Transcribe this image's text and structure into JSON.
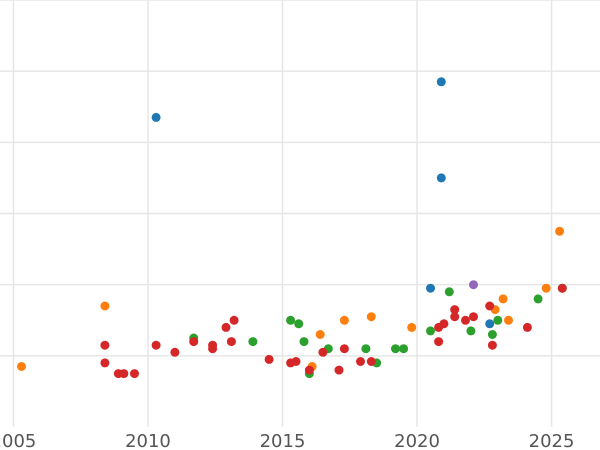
{
  "chart_data": {
    "type": "scatter",
    "title": "",
    "xlabel": "",
    "ylabel": "",
    "grid": true,
    "legend": "none",
    "xlim": [
      2004.5,
      2026.8
    ],
    "ylim": [
      0,
      6
    ],
    "x_ticks": [
      2005,
      2010,
      2015,
      2020,
      2025
    ],
    "x_tick_labels": [
      "2005",
      "2010",
      "2015",
      "2020",
      "2025"
    ],
    "y_gridlines": [
      1,
      2,
      3,
      4,
      5,
      6
    ],
    "series": [
      {
        "color": "#1f77b4",
        "points": [
          [
            2010.3,
            4.35
          ],
          [
            2020.9,
            4.85
          ],
          [
            2020.9,
            3.5
          ],
          [
            2020.5,
            1.95
          ],
          [
            2022.7,
            1.45
          ]
        ]
      },
      {
        "color": "#ff7f0e",
        "points": [
          [
            2005.3,
            0.85
          ],
          [
            2008.4,
            1.7
          ],
          [
            2016.1,
            0.85
          ],
          [
            2016.4,
            1.3
          ],
          [
            2017.3,
            1.5
          ],
          [
            2018.3,
            1.55
          ],
          [
            2019.8,
            1.4
          ],
          [
            2022.9,
            1.65
          ],
          [
            2023.2,
            1.8
          ],
          [
            2023.4,
            1.5
          ],
          [
            2024.8,
            1.95
          ],
          [
            2025.3,
            2.75
          ]
        ]
      },
      {
        "color": "#2ca02c",
        "points": [
          [
            2011.7,
            1.25
          ],
          [
            2013.9,
            1.2
          ],
          [
            2015.3,
            1.5
          ],
          [
            2015.6,
            1.45
          ],
          [
            2015.8,
            1.2
          ],
          [
            2016.0,
            0.75
          ],
          [
            2016.7,
            1.1
          ],
          [
            2018.1,
            1.1
          ],
          [
            2018.5,
            0.9
          ],
          [
            2019.2,
            1.1
          ],
          [
            2019.5,
            1.1
          ],
          [
            2020.5,
            1.35
          ],
          [
            2021.2,
            1.9
          ],
          [
            2022.0,
            1.35
          ],
          [
            2022.8,
            1.3
          ],
          [
            2023.0,
            1.5
          ],
          [
            2024.5,
            1.8
          ],
          [
            2025.4,
            1.95
          ]
        ]
      },
      {
        "color": "#d62728",
        "points": [
          [
            2008.4,
            0.9
          ],
          [
            2008.4,
            1.15
          ],
          [
            2008.9,
            0.75
          ],
          [
            2009.1,
            0.75
          ],
          [
            2009.5,
            0.75
          ],
          [
            2010.3,
            1.15
          ],
          [
            2011.0,
            1.05
          ],
          [
            2011.7,
            1.2
          ],
          [
            2012.4,
            1.1
          ],
          [
            2012.4,
            1.15
          ],
          [
            2012.9,
            1.4
          ],
          [
            2013.1,
            1.2
          ],
          [
            2013.2,
            1.5
          ],
          [
            2014.5,
            0.95
          ],
          [
            2015.3,
            0.9
          ],
          [
            2015.5,
            0.92
          ],
          [
            2016.0,
            0.8
          ],
          [
            2016.5,
            1.05
          ],
          [
            2017.1,
            0.8
          ],
          [
            2017.3,
            1.1
          ],
          [
            2017.9,
            0.92
          ],
          [
            2018.3,
            0.92
          ],
          [
            2020.8,
            1.2
          ],
          [
            2020.8,
            1.4
          ],
          [
            2021.0,
            1.45
          ],
          [
            2021.4,
            1.55
          ],
          [
            2021.4,
            1.65
          ],
          [
            2021.8,
            1.5
          ],
          [
            2022.1,
            1.55
          ],
          [
            2022.7,
            1.7
          ],
          [
            2022.8,
            1.15
          ],
          [
            2024.1,
            1.4
          ],
          [
            2025.4,
            1.95
          ]
        ]
      },
      {
        "color": "#9467bd",
        "points": [
          [
            2022.1,
            2.0
          ]
        ]
      }
    ]
  }
}
